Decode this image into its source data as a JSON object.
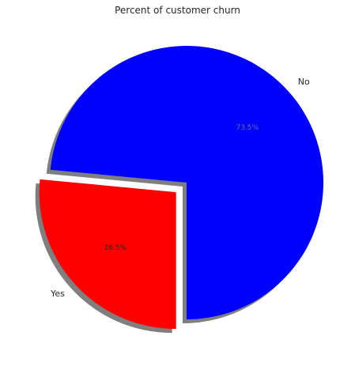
{
  "chart_data": {
    "type": "pie",
    "title": "Percent of customer churn",
    "slices": [
      {
        "label": "No",
        "percent_label": "73.5%",
        "value": 73.5,
        "color": "#0000ff",
        "exploded": false
      },
      {
        "label": "Yes",
        "percent_label": "26.5%",
        "value": 26.5,
        "color": "#ff0000",
        "exploded": true
      }
    ],
    "shadow": true,
    "legend": false
  }
}
